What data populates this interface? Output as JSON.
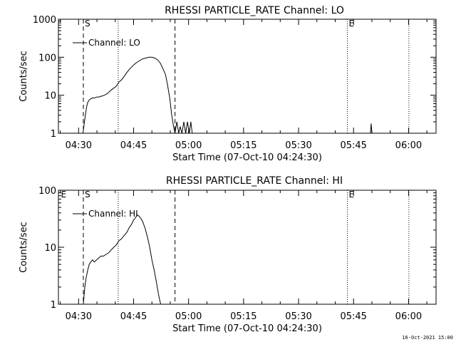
{
  "footer_date": "16-Oct-2021 15:00",
  "chart_data": [
    {
      "type": "line",
      "title": "RHESSI PARTICLE_RATE Channel: LO",
      "xlabel": "Start Time (07-Oct-10 04:24:30)",
      "ylabel": "Counts/sec",
      "y_scale": "log",
      "ylim": [
        1,
        1000
      ],
      "y_ticks": [
        1,
        10,
        100,
        1000
      ],
      "y_tick_labels": [
        "1",
        "10",
        "100",
        "1000"
      ],
      "xlim_minutes": [
        264.5,
        367.5
      ],
      "x_ticks_minutes": [
        270,
        285,
        300,
        315,
        330,
        345,
        360
      ],
      "x_tick_labels": [
        "04:30",
        "04:45",
        "05:00",
        "05:15",
        "05:30",
        "05:45",
        "06:00"
      ],
      "legend": "top-left",
      "series": [
        {
          "name": "Channel: LO",
          "x": [
            271.2,
            271.6,
            272.2,
            272.5,
            272.9,
            273.3,
            273.8,
            274.4,
            275.0,
            275.6,
            276.3,
            277.0,
            277.8,
            278.6,
            279.4,
            280.2,
            281.0,
            281.8,
            282.5,
            283.2,
            284.0,
            284.8,
            285.6,
            286.5,
            287.4,
            288.3,
            289.2,
            290.0,
            290.8,
            291.6,
            292.3,
            293.0,
            293.7,
            294.3,
            294.9,
            295.4,
            295.9,
            296.3,
            296.8,
            297.3,
            297.7,
            298.2,
            298.7,
            299.2,
            299.7,
            300.2,
            300.6,
            301.0
          ],
          "y": [
            1,
            2,
            5,
            6.5,
            7.5,
            8,
            8.5,
            8.5,
            9,
            9,
            9.5,
            10,
            11,
            13,
            15,
            17,
            22,
            26,
            32,
            40,
            50,
            60,
            70,
            80,
            90,
            95,
            100,
            100,
            95,
            85,
            70,
            50,
            35,
            18,
            8,
            3,
            1.5,
            1,
            2,
            1,
            1.5,
            1,
            2,
            1,
            2,
            1,
            2,
            1
          ]
        }
      ],
      "spike": {
        "x": 349.8,
        "y": 1.8
      },
      "dashed_lines_minutes": [
        271.3,
        296.3
      ],
      "dotted_lines_minutes": [
        280.8,
        343.3,
        360.1
      ],
      "markers": [
        {
          "label": "S",
          "x": 271.3
        },
        {
          "label": "E",
          "x": 343.3
        }
      ]
    },
    {
      "type": "line",
      "title": "RHESSI PARTICLE_RATE Channel: HI",
      "xlabel": "Start Time (07-Oct-10 04:24:30)",
      "ylabel": "Counts/sec",
      "y_scale": "log",
      "ylim": [
        1,
        100
      ],
      "y_ticks": [
        1,
        10,
        100
      ],
      "y_tick_labels": [
        "1",
        "10",
        "100"
      ],
      "xlim_minutes": [
        264.5,
        367.5
      ],
      "x_ticks_minutes": [
        270,
        285,
        300,
        315,
        330,
        345,
        360
      ],
      "x_tick_labels": [
        "04:30",
        "04:45",
        "05:00",
        "05:15",
        "05:30",
        "05:45",
        "06:00"
      ],
      "legend": "top-left",
      "series": [
        {
          "name": "Channel: HI",
          "x": [
            271.3,
            271.7,
            272.1,
            272.5,
            272.9,
            273.3,
            273.8,
            274.3,
            274.9,
            275.5,
            276.1,
            276.8,
            277.5,
            278.2,
            278.9,
            279.6,
            280.3,
            281.0,
            281.7,
            282.4,
            283.1,
            283.8,
            284.4,
            285.0,
            285.5,
            286.0,
            286.5,
            287.0,
            287.5,
            288.1,
            288.8,
            289.4,
            290.0,
            290.6,
            291.2,
            291.7,
            292.1,
            292.4
          ],
          "y": [
            1,
            2,
            3,
            4,
            5,
            5.5,
            6,
            5.5,
            6,
            6.5,
            7,
            7,
            7.5,
            8,
            9,
            10,
            11,
            13,
            14,
            16,
            18,
            22,
            25,
            30,
            33,
            37,
            35,
            32,
            28,
            22,
            15,
            10,
            6,
            4,
            2.5,
            1.6,
            1.2,
            1
          ]
        }
      ],
      "dashed_lines_minutes": [
        271.3,
        296.3
      ],
      "dotted_lines_minutes": [
        280.8,
        343.3,
        360.1
      ],
      "markers": [
        {
          "label": "E",
          "x": 264.8
        },
        {
          "label": "S",
          "x": 271.3
        },
        {
          "label": "E",
          "x": 343.3
        }
      ]
    }
  ]
}
